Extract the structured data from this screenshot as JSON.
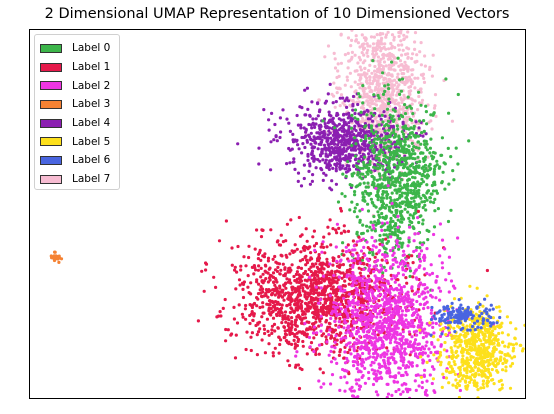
{
  "chart_data": {
    "type": "scatter",
    "title": "2 Dimensional UMAP Representation of 10 Dimensioned Vectors",
    "xlabel": "",
    "ylabel": "",
    "axes_ticks": false,
    "grid": false,
    "legend_position": "top-left",
    "legend": [
      {
        "label": "Label 0",
        "color": "#3cb54a"
      },
      {
        "label": "Label 1",
        "color": "#e5194a"
      },
      {
        "label": "Label 2",
        "color": "#ee35e3"
      },
      {
        "label": "Label 3",
        "color": "#f58233"
      },
      {
        "label": "Label 4",
        "color": "#8b1fb1"
      },
      {
        "label": "Label 5",
        "color": "#fde01c"
      },
      {
        "label": "Label 6",
        "color": "#4965e0"
      },
      {
        "label": "Label 7",
        "color": "#f7bcd2"
      }
    ],
    "series": [
      {
        "name": "Label 7",
        "color": "#f7bcd2",
        "clusters": [
          {
            "center": [
              382,
              90
            ],
            "spread": [
              22,
              38
            ],
            "n": 900
          }
        ]
      },
      {
        "name": "Label 4",
        "color": "#8b1fb1",
        "clusters": [
          {
            "center": [
              342,
              140
            ],
            "spread": [
              28,
              18
            ],
            "n": 700
          }
        ]
      },
      {
        "name": "Label 0",
        "color": "#3cb54a",
        "clusters": [
          {
            "center": [
              395,
              180
            ],
            "spread": [
              22,
              40
            ],
            "n": 900
          }
        ]
      },
      {
        "name": "Label 1",
        "color": "#e5194a",
        "clusters": [
          {
            "center": [
              315,
              295
            ],
            "spread": [
              40,
              28
            ],
            "n": 1300
          }
        ]
      },
      {
        "name": "Label 2",
        "color": "#ee35e3",
        "clusters": [
          {
            "center": [
              385,
              320
            ],
            "spread": [
              30,
              40
            ],
            "n": 1200
          }
        ]
      },
      {
        "name": "Label 5",
        "color": "#fde01c",
        "clusters": [
          {
            "center": [
              475,
              350
            ],
            "spread": [
              18,
              22
            ],
            "n": 600
          }
        ]
      },
      {
        "name": "Label 6",
        "color": "#4965e0",
        "clusters": [
          {
            "center": [
              463,
              315
            ],
            "spread": [
              14,
              6
            ],
            "n": 150
          }
        ]
      },
      {
        "name": "Label 3",
        "color": "#f58233",
        "clusters": [
          {
            "center": [
              55,
              256
            ],
            "spread": [
              2,
              2
            ],
            "n": 30
          }
        ]
      }
    ]
  }
}
